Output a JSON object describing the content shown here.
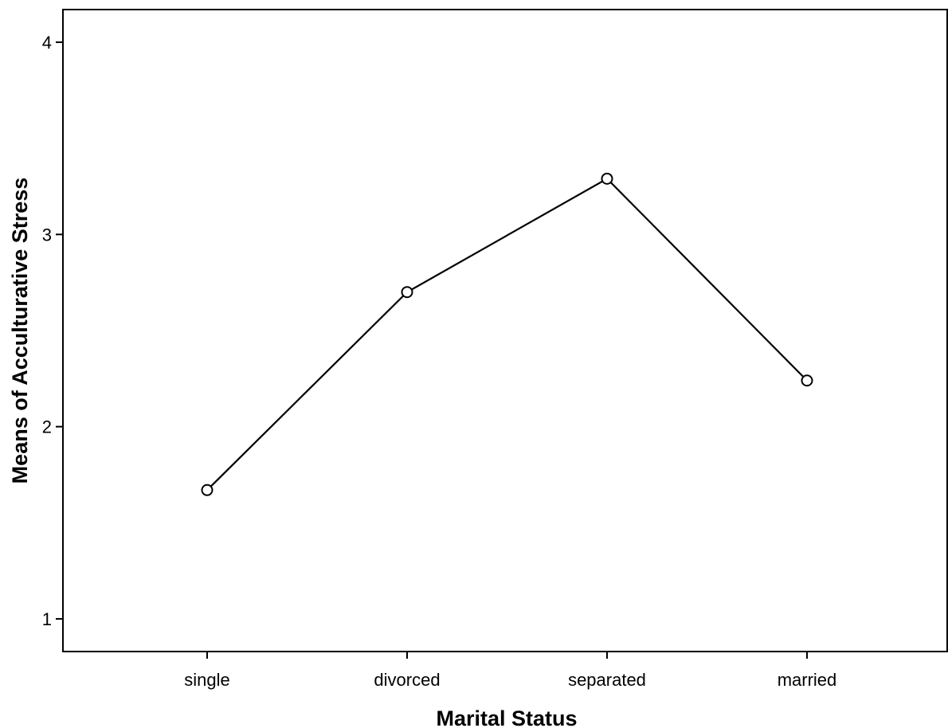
{
  "chart_data": {
    "type": "line",
    "title": "",
    "xlabel": "Marital Status",
    "ylabel": "Means of Acculturative Stress",
    "categories": [
      "single",
      "divorced",
      "separated",
      "married"
    ],
    "series": [
      {
        "values": [
          1.67,
          2.7,
          3.29,
          2.24
        ]
      }
    ],
    "ylim": [
      0.83,
      4.17
    ],
    "yticks": [
      "1",
      "2",
      "3",
      "4"
    ],
    "grid": false,
    "legend": "none",
    "marker": "open-circle",
    "line_color": "#000000"
  }
}
